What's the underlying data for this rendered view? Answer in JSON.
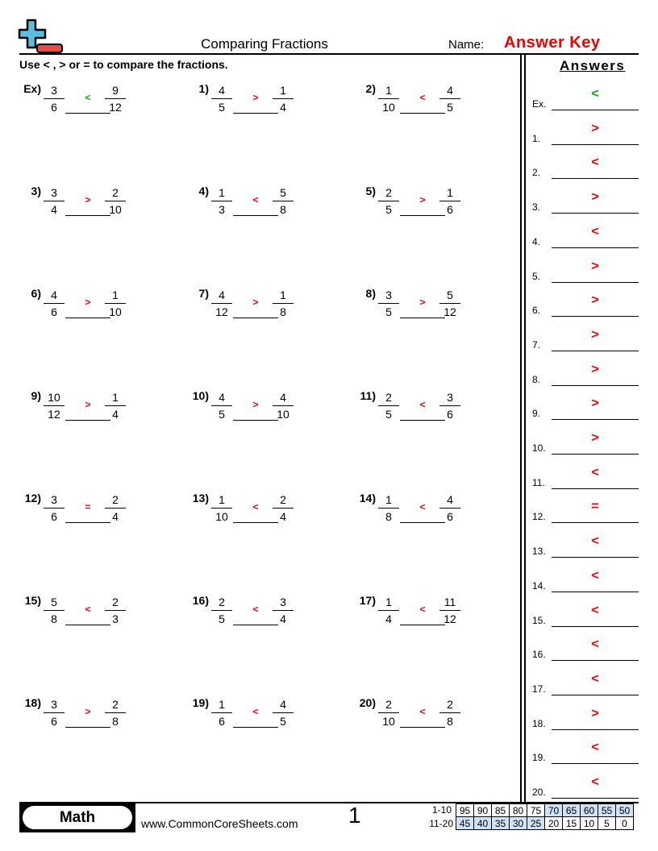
{
  "header": {
    "title": "Comparing Fractions",
    "name_label": "Name:",
    "name_value": "Answer Key"
  },
  "instructions": "Use < , > or = to compare the fractions.",
  "answers_title": "Answers",
  "colors": {
    "answer_red": "#ee0000",
    "example_green": "#00aa00",
    "logo_blue": "#5bbde0",
    "logo_red": "#e84a4a",
    "score_blue": "#cfe2f7"
  },
  "problems": [
    {
      "label": "Ex)",
      "a": [
        "3",
        "6"
      ],
      "b": [
        "9",
        "12"
      ],
      "answer": "<"
    },
    {
      "label": "1)",
      "a": [
        "4",
        "5"
      ],
      "b": [
        "1",
        "4"
      ],
      "answer": ">"
    },
    {
      "label": "2)",
      "a": [
        "1",
        "10"
      ],
      "b": [
        "4",
        "5"
      ],
      "answer": "<"
    },
    {
      "label": "3)",
      "a": [
        "3",
        "4"
      ],
      "b": [
        "2",
        "10"
      ],
      "answer": ">"
    },
    {
      "label": "4)",
      "a": [
        "1",
        "3"
      ],
      "b": [
        "5",
        "8"
      ],
      "answer": "<"
    },
    {
      "label": "5)",
      "a": [
        "2",
        "5"
      ],
      "b": [
        "1",
        "6"
      ],
      "answer": ">"
    },
    {
      "label": "6)",
      "a": [
        "4",
        "6"
      ],
      "b": [
        "1",
        "10"
      ],
      "answer": ">"
    },
    {
      "label": "7)",
      "a": [
        "4",
        "12"
      ],
      "b": [
        "1",
        "8"
      ],
      "answer": ">"
    },
    {
      "label": "8)",
      "a": [
        "3",
        "5"
      ],
      "b": [
        "5",
        "12"
      ],
      "answer": ">"
    },
    {
      "label": "9)",
      "a": [
        "10",
        "12"
      ],
      "b": [
        "1",
        "4"
      ],
      "answer": ">"
    },
    {
      "label": "10)",
      "a": [
        "4",
        "5"
      ],
      "b": [
        "4",
        "10"
      ],
      "answer": ">"
    },
    {
      "label": "11)",
      "a": [
        "2",
        "5"
      ],
      "b": [
        "3",
        "6"
      ],
      "answer": "<"
    },
    {
      "label": "12)",
      "a": [
        "3",
        "6"
      ],
      "b": [
        "2",
        "4"
      ],
      "answer": "="
    },
    {
      "label": "13)",
      "a": [
        "1",
        "10"
      ],
      "b": [
        "2",
        "4"
      ],
      "answer": "<"
    },
    {
      "label": "14)",
      "a": [
        "1",
        "8"
      ],
      "b": [
        "4",
        "6"
      ],
      "answer": "<"
    },
    {
      "label": "15)",
      "a": [
        "5",
        "8"
      ],
      "b": [
        "2",
        "3"
      ],
      "answer": "<"
    },
    {
      "label": "16)",
      "a": [
        "2",
        "5"
      ],
      "b": [
        "3",
        "4"
      ],
      "answer": "<"
    },
    {
      "label": "17)",
      "a": [
        "1",
        "4"
      ],
      "b": [
        "11",
        "12"
      ],
      "answer": "<"
    },
    {
      "label": "18)",
      "a": [
        "3",
        "6"
      ],
      "b": [
        "2",
        "8"
      ],
      "answer": ">"
    },
    {
      "label": "19)",
      "a": [
        "1",
        "6"
      ],
      "b": [
        "4",
        "5"
      ],
      "answer": "<"
    },
    {
      "label": "20)",
      "a": [
        "2",
        "10"
      ],
      "b": [
        "2",
        "8"
      ],
      "answer": "<"
    }
  ],
  "answer_key": [
    {
      "label": "Ex.",
      "value": "<"
    },
    {
      "label": "1.",
      "value": ">"
    },
    {
      "label": "2.",
      "value": "<"
    },
    {
      "label": "3.",
      "value": ">"
    },
    {
      "label": "4.",
      "value": "<"
    },
    {
      "label": "5.",
      "value": ">"
    },
    {
      "label": "6.",
      "value": ">"
    },
    {
      "label": "7.",
      "value": ">"
    },
    {
      "label": "8.",
      "value": ">"
    },
    {
      "label": "9.",
      "value": ">"
    },
    {
      "label": "10.",
      "value": ">"
    },
    {
      "label": "11.",
      "value": "<"
    },
    {
      "label": "12.",
      "value": "="
    },
    {
      "label": "13.",
      "value": "<"
    },
    {
      "label": "14.",
      "value": "<"
    },
    {
      "label": "15.",
      "value": "<"
    },
    {
      "label": "16.",
      "value": "<"
    },
    {
      "label": "17.",
      "value": "<"
    },
    {
      "label": "18.",
      "value": ">"
    },
    {
      "label": "19.",
      "value": "<"
    },
    {
      "label": "20.",
      "value": "<"
    }
  ],
  "footer": {
    "subject": "Math",
    "website": "www.CommonCoreSheets.com",
    "page": "1",
    "score_rows": [
      {
        "label": "1-10",
        "values": [
          "95",
          "90",
          "85",
          "80",
          "75",
          "70",
          "65",
          "60",
          "55",
          "50"
        ],
        "shaded": [
          false,
          false,
          false,
          false,
          false,
          true,
          true,
          true,
          true,
          true
        ]
      },
      {
        "label": "11-20",
        "values": [
          "45",
          "40",
          "35",
          "30",
          "25",
          "20",
          "15",
          "10",
          "5",
          "0"
        ],
        "shaded": [
          true,
          true,
          true,
          true,
          true,
          false,
          false,
          false,
          false,
          false
        ]
      }
    ]
  }
}
